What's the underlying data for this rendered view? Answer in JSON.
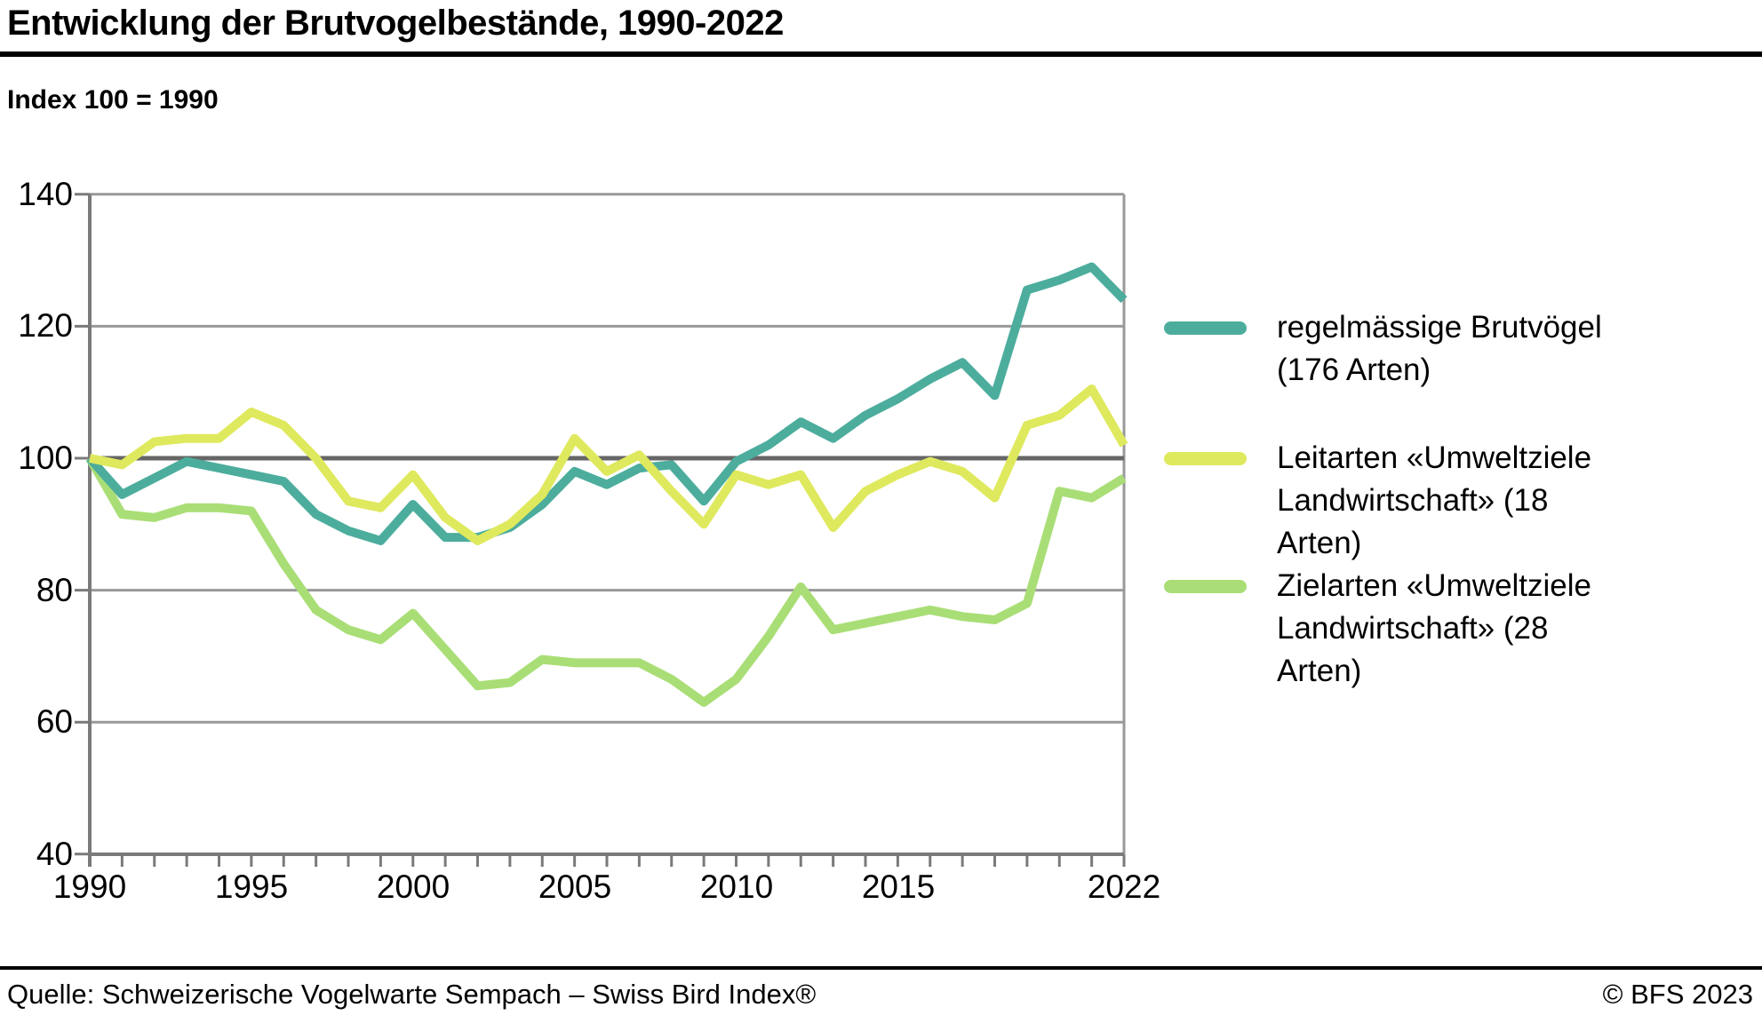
{
  "header": {
    "title": "Entwicklung der Brutvogelbestände, 1990-2022",
    "subtitle": "Index 100 = 1990"
  },
  "footer": {
    "source": "Quelle: Schweizerische Vogelwarte Sempach – Swiss Bird Index®",
    "copyright": "© BFS 2023"
  },
  "colors": {
    "series_regular_breeders": "#4cad9d",
    "series_leitarten": "#dfe95d",
    "series_zielarten": "#a9de76",
    "grid": "#999999",
    "baseline": "#666666",
    "axis": "#7a7a7a",
    "rule": "#000000"
  },
  "chart_data": {
    "type": "line",
    "title": "Entwicklung der Brutvogelbestände, 1990-2022",
    "ylabel": "Index 100 = 1990",
    "xlabel": "",
    "ylim": [
      40,
      140
    ],
    "xlim": [
      1990,
      2022
    ],
    "grid": true,
    "baseline_value": 100,
    "legend_position": "right",
    "x": [
      1990,
      1991,
      1992,
      1993,
      1994,
      1995,
      1996,
      1997,
      1998,
      1999,
      2000,
      2001,
      2002,
      2003,
      2004,
      2005,
      2006,
      2007,
      2008,
      2009,
      2010,
      2011,
      2012,
      2013,
      2014,
      2015,
      2016,
      2017,
      2018,
      2019,
      2020,
      2021,
      2022
    ],
    "y_ticks": [
      140,
      120,
      100,
      80,
      60,
      40
    ],
    "y_tick_labels": [
      "140",
      "120",
      "100",
      "80",
      "60",
      "40"
    ],
    "x_tick_years": [
      1990,
      1995,
      2000,
      2005,
      2010,
      2015,
      2022
    ],
    "x_tick_labels": [
      "1990",
      "1995",
      "2000",
      "2005",
      "2010",
      "2015",
      "2022"
    ],
    "series": [
      {
        "name": "regelmässige Brutvögel (176 Arten)",
        "label_lines": [
          "regelmässige Brutvögel",
          "(176 Arten)"
        ],
        "color": "#4cad9d",
        "values": [
          100,
          94.5,
          97,
          99.5,
          98.5,
          97.5,
          96.5,
          91.5,
          89,
          87.5,
          93,
          88,
          88,
          89.5,
          93,
          98,
          96,
          98.5,
          99,
          93.5,
          99.5,
          102,
          105.5,
          103,
          106.5,
          109,
          112,
          114.5,
          109.5,
          125.5,
          127,
          129,
          124
        ]
      },
      {
        "name": "Leitarten «Umweltziele Landwirtschaft» (18 Arten)",
        "label_lines": [
          "Leitarten «Umweltziele",
          "Landwirtschaft» (18",
          "Arten)"
        ],
        "color": "#dfe95d",
        "values": [
          100,
          99,
          102.5,
          103,
          103,
          107,
          105,
          100,
          93.5,
          92.5,
          97.5,
          91,
          87.5,
          90,
          94.5,
          103,
          98,
          100.5,
          95,
          90,
          97.5,
          96,
          97.5,
          89.5,
          95,
          97.5,
          99.5,
          98,
          94,
          105,
          106.5,
          110.5,
          102
        ]
      },
      {
        "name": "Zielarten «Umweltziele Landwirtschaft» (28 Arten)",
        "label_lines": [
          "Zielarten «Umweltziele",
          "Landwirtschaft» (28",
          "Arten)"
        ],
        "color": "#a9de76",
        "values": [
          100,
          91.5,
          91,
          92.5,
          92.5,
          92,
          84,
          77,
          74,
          72.5,
          76.5,
          71,
          65.5,
          66,
          69.5,
          69,
          69,
          69,
          66.5,
          63,
          66.5,
          73,
          80.5,
          74,
          75,
          76,
          77,
          76,
          75.5,
          78,
          95,
          94,
          97
        ]
      }
    ]
  }
}
